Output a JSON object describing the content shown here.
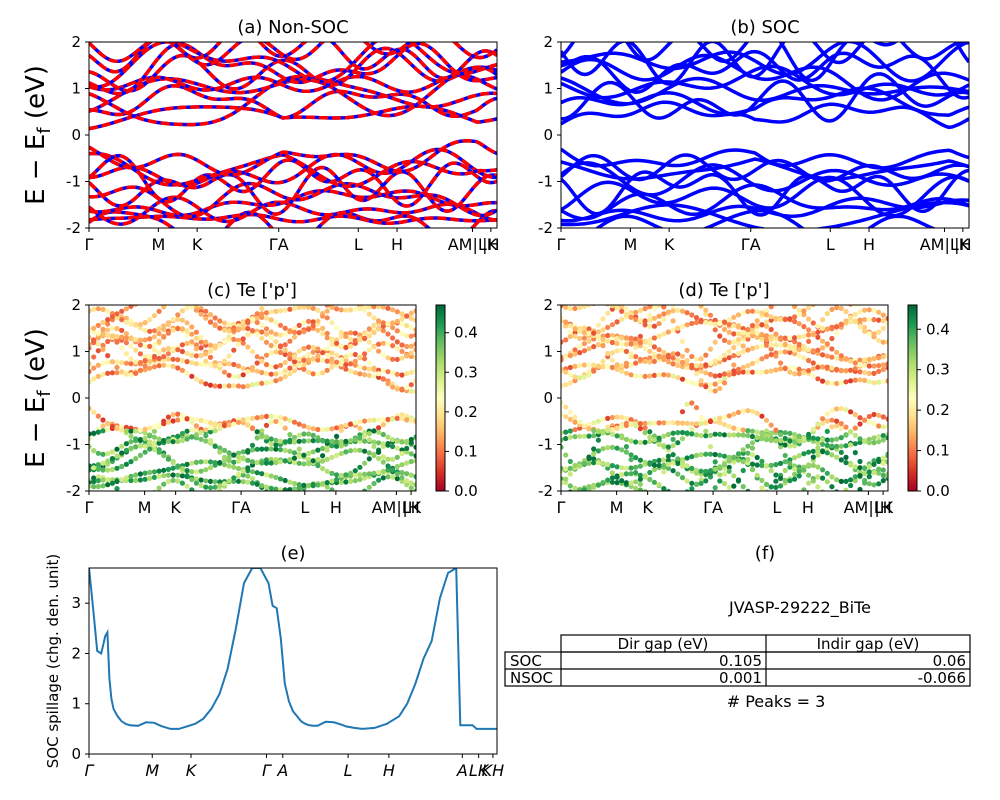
{
  "figure": {
    "ylabel_main": "E − E",
    "ylabel_sub": "f",
    "ylabel_unit": " (eV)",
    "kpath_labels": [
      "Γ",
      "M",
      "K",
      "ΓA",
      "L",
      "H",
      "AM|LK",
      "|H"
    ],
    "kpath_labels_e": [
      "Γ",
      "M",
      "K",
      "Γ",
      "A",
      "L",
      "H",
      "A",
      "LK",
      "KH"
    ]
  },
  "chart_data": [
    {
      "id": "a",
      "type": "line",
      "title": "(a) Non-SOC",
      "xlabel": "",
      "ylabel": "E − E_f (eV)",
      "ylim": [
        -2,
        2
      ],
      "yticks": [
        -2,
        -1,
        0,
        1,
        2
      ],
      "series_colors": [
        "#0000ff",
        "#ff0000"
      ],
      "note": "many band lines, blue solid with red dashed overlay"
    },
    {
      "id": "b",
      "type": "line",
      "title": "(b) SOC",
      "xlabel": "",
      "ylabel": "",
      "ylim": [
        -2,
        2
      ],
      "yticks": [
        -2,
        -1,
        0,
        1,
        2
      ],
      "series_colors": [
        "#0000ff"
      ]
    },
    {
      "id": "c",
      "type": "scatter",
      "title": "(c)  Te ['p']",
      "ylabel": "E − E_f (eV)",
      "ylim": [
        -2,
        2
      ],
      "yticks": [
        -2,
        -1,
        0,
        1,
        2
      ],
      "colorbar": {
        "min": 0.0,
        "max": 0.47,
        "ticks": [
          "0.0",
          "0.1",
          "0.2",
          "0.3",
          "0.4"
        ],
        "cmap": "RdYlGn"
      }
    },
    {
      "id": "d",
      "type": "scatter",
      "title": "(d) Te ['p']",
      "ylabel": "",
      "ylim": [
        -2,
        2
      ],
      "yticks": [
        -2,
        -1,
        0,
        1,
        2
      ],
      "colorbar": {
        "min": 0.0,
        "max": 0.46,
        "ticks": [
          "0.0",
          "0.1",
          "0.2",
          "0.3",
          "0.4"
        ],
        "cmap": "RdYlGn"
      }
    },
    {
      "id": "e",
      "type": "line",
      "title": "(e)",
      "ylabel": "SOC spillage (chg. den. unit)",
      "ylim": [
        0,
        3.7
      ],
      "yticks": [
        0,
        1,
        2,
        3
      ],
      "color": "#1f77b4",
      "x": [
        0,
        0.01,
        0.02,
        0.03,
        0.04,
        0.045,
        0.05,
        0.055,
        0.06,
        0.07,
        0.08,
        0.09,
        0.1,
        0.12,
        0.14,
        0.16,
        0.17,
        0.18,
        0.2,
        0.22,
        0.24,
        0.26,
        0.28,
        0.3,
        0.32,
        0.34,
        0.36,
        0.38,
        0.4,
        0.42,
        0.43,
        0.44,
        0.45,
        0.46,
        0.47,
        0.48,
        0.49,
        0.5,
        0.51,
        0.515,
        0.52,
        0.53,
        0.54,
        0.55,
        0.56,
        0.58,
        0.6,
        0.62,
        0.63,
        0.65,
        0.67,
        0.7,
        0.73,
        0.76,
        0.78,
        0.8,
        0.82,
        0.84,
        0.86,
        0.88,
        0.9,
        0.91,
        0.92,
        0.93,
        0.935,
        0.94,
        0.95,
        0.97,
        0.98,
        0.99,
        1.0
      ],
      "values": [
        3.7,
        2.9,
        2.05,
        2.0,
        2.35,
        2.42,
        1.5,
        1.1,
        0.9,
        0.75,
        0.65,
        0.6,
        0.57,
        0.56,
        0.63,
        0.62,
        0.58,
        0.55,
        0.5,
        0.5,
        0.55,
        0.6,
        0.7,
        0.9,
        1.2,
        1.7,
        2.5,
        3.4,
        3.7,
        3.7,
        3.55,
        3.4,
        2.95,
        2.9,
        2.3,
        1.4,
        1.05,
        0.85,
        0.75,
        0.7,
        0.65,
        0.6,
        0.57,
        0.56,
        0.56,
        0.64,
        0.63,
        0.58,
        0.55,
        0.52,
        0.5,
        0.52,
        0.6,
        0.75,
        1.0,
        1.4,
        1.9,
        2.25,
        3.1,
        3.6,
        3.7,
        0.57,
        0.57,
        0.57,
        0.57,
        0.57,
        0.5,
        0.5,
        0.5,
        0.5,
        0.5
      ]
    },
    {
      "id": "f",
      "type": "table",
      "title": "(f)",
      "subtitle": "JVASP-29222_BiTe",
      "columns": [
        "Dir gap (eV)",
        "Indir gap (eV)"
      ],
      "rows": [
        {
          "label": "SOC",
          "values": [
            "0.105",
            "0.06"
          ]
        },
        {
          "label": "NSOC",
          "values": [
            "0.001",
            "-0.066"
          ]
        }
      ],
      "footer": "# Peaks = 3"
    }
  ]
}
